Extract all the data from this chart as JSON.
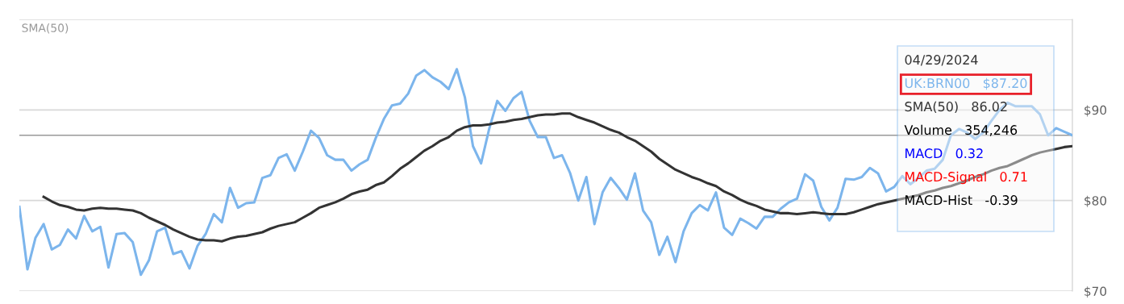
{
  "chart_data": {
    "type": "line",
    "categories": [
      null,
      null,
      null,
      null,
      null,
      null,
      null,
      null,
      null,
      null,
      null,
      null,
      null,
      null,
      null,
      null,
      null,
      null,
      null,
      null,
      null,
      null,
      null,
      null,
      null,
      null,
      null,
      null,
      null,
      null,
      null,
      null,
      null,
      null,
      null,
      null,
      null,
      null,
      null,
      null,
      null,
      null,
      null,
      null,
      null,
      null,
      null,
      null,
      null,
      null,
      null,
      null,
      null,
      null,
      null,
      null,
      null,
      null,
      null,
      null,
      null,
      null,
      null,
      null,
      null,
      null,
      null,
      null,
      null,
      null,
      null,
      null,
      null,
      null,
      null,
      null,
      null,
      null,
      null,
      null,
      null,
      null,
      null,
      null,
      null,
      null,
      null,
      null,
      null,
      null,
      null,
      null,
      null,
      null,
      null,
      null,
      null,
      null,
      null,
      null,
      null,
      null,
      null,
      null,
      null,
      null,
      null,
      null,
      null,
      null,
      null,
      null,
      null,
      null,
      null,
      null,
      null,
      null,
      null,
      null,
      null,
      null,
      null,
      null,
      null,
      null,
      null,
      null,
      null,
      null,
      null
    ],
    "series": [
      {
        "color": "#7cb5ec",
        "values": [
          79.3,
          72.4,
          75.9,
          77.4,
          74.6,
          75.1,
          76.8,
          75.8,
          78.3,
          76.6,
          77.1,
          72.6,
          76.3,
          76.4,
          75.4,
          71.8,
          73.4,
          76.6,
          77.0,
          74.1,
          74.4,
          72.5,
          75.0,
          76.3,
          78.5,
          77.6,
          81.4,
          79.2,
          79.7,
          79.8,
          82.5,
          82.8,
          84.7,
          85.1,
          83.3,
          85.4,
          87.7,
          86.9,
          85.0,
          84.5,
          84.5,
          83.3,
          84.0,
          84.5,
          86.9,
          89.0,
          90.5,
          90.7,
          91.8,
          93.8,
          94.4,
          93.6,
          93.1,
          92.3,
          94.5,
          91.4,
          86.0,
          84.1,
          87.9,
          91.0,
          89.9,
          91.3,
          92.0,
          88.8,
          87.0,
          87.0,
          84.7,
          85.0,
          83.0,
          80.0,
          82.6,
          77.4,
          80.9,
          82.5,
          81.4,
          80.1,
          83.0,
          78.9,
          77.6,
          74.0,
          76.0,
          73.2,
          76.6,
          78.6,
          79.5,
          78.9,
          80.9,
          77.0,
          76.2,
          78.0,
          77.5,
          76.9,
          78.2,
          78.2,
          79.1,
          79.8,
          80.2,
          82.9,
          82.2,
          79.3,
          77.8,
          79.2,
          82.4,
          82.3,
          82.6,
          83.6,
          83.0,
          81.0,
          81.5,
          82.7,
          81.8,
          82.5,
          83.3,
          83.5,
          84.5,
          87.2,
          87.9,
          87.5,
          86.8,
          87.5,
          88.8,
          90.0,
          90.8,
          90.4,
          90.4,
          90.4,
          89.5,
          87.2,
          88.0,
          87.6,
          87.2
        ]
      },
      {
        "color": "#333333",
        "values": [
          null,
          null,
          null,
          80.4,
          79.9,
          79.5,
          79.3,
          79.0,
          78.9,
          79.1,
          79.2,
          79.1,
          79.1,
          79.0,
          78.9,
          78.6,
          78.1,
          77.7,
          77.3,
          76.8,
          76.4,
          76.0,
          75.7,
          75.6,
          75.6,
          75.5,
          75.8,
          76.0,
          76.1,
          76.3,
          76.5,
          76.9,
          77.2,
          77.4,
          77.6,
          78.1,
          78.6,
          79.2,
          79.5,
          79.8,
          80.2,
          80.7,
          81.0,
          81.2,
          81.7,
          82.0,
          82.7,
          83.5,
          84.1,
          84.8,
          85.5,
          86.0,
          86.6,
          87.0,
          87.7,
          88.1,
          88.3,
          88.3,
          88.4,
          88.6,
          88.7,
          88.9,
          89.0,
          89.2,
          89.4,
          89.5,
          89.5,
          89.6,
          89.6,
          89.2,
          88.9,
          88.6,
          88.2,
          87.8,
          87.5,
          87.0,
          86.6,
          86.0,
          85.4,
          84.6,
          84.0,
          83.4,
          83.0,
          82.6,
          82.3,
          81.9,
          81.6,
          81.0,
          80.6,
          80.1,
          79.7,
          79.4,
          79.0,
          78.8,
          78.6,
          78.6,
          78.5,
          78.6,
          78.7,
          78.6,
          78.5,
          78.5,
          78.5,
          78.7,
          79.0,
          79.3,
          79.6,
          79.8,
          80.0,
          80.2,
          80.4,
          80.6,
          80.9,
          81.1,
          81.4,
          81.6,
          81.9,
          82.2,
          82.6,
          82.9,
          83.3,
          83.6,
          83.8,
          84.2,
          84.6,
          85.0,
          85.3,
          85.5,
          85.7,
          85.9,
          86.0
        ]
      }
    ],
    "ylim": [
      70,
      100
    ],
    "yticks": [
      {
        "value": 70,
        "label": "$70"
      },
      {
        "value": 80,
        "label": "$80"
      },
      {
        "value": 90,
        "label": "$90"
      },
      {
        "value": 100,
        "label": null
      }
    ],
    "grid": "y",
    "tick_labels": "y",
    "ref_lines": [
      {
        "axis": "y",
        "value": 87.2,
        "label": null,
        "color": "#999999"
      }
    ],
    "annotations": [
      "SMA(50)",
      "04/29/2024",
      "UK:BRN00   $87.20",
      "SMA(50)   86.02",
      "Volume   354,246",
      "MACD   0.32",
      "MACD-Signal   0.71",
      "MACD-Hist   -0.39"
    ]
  }
}
